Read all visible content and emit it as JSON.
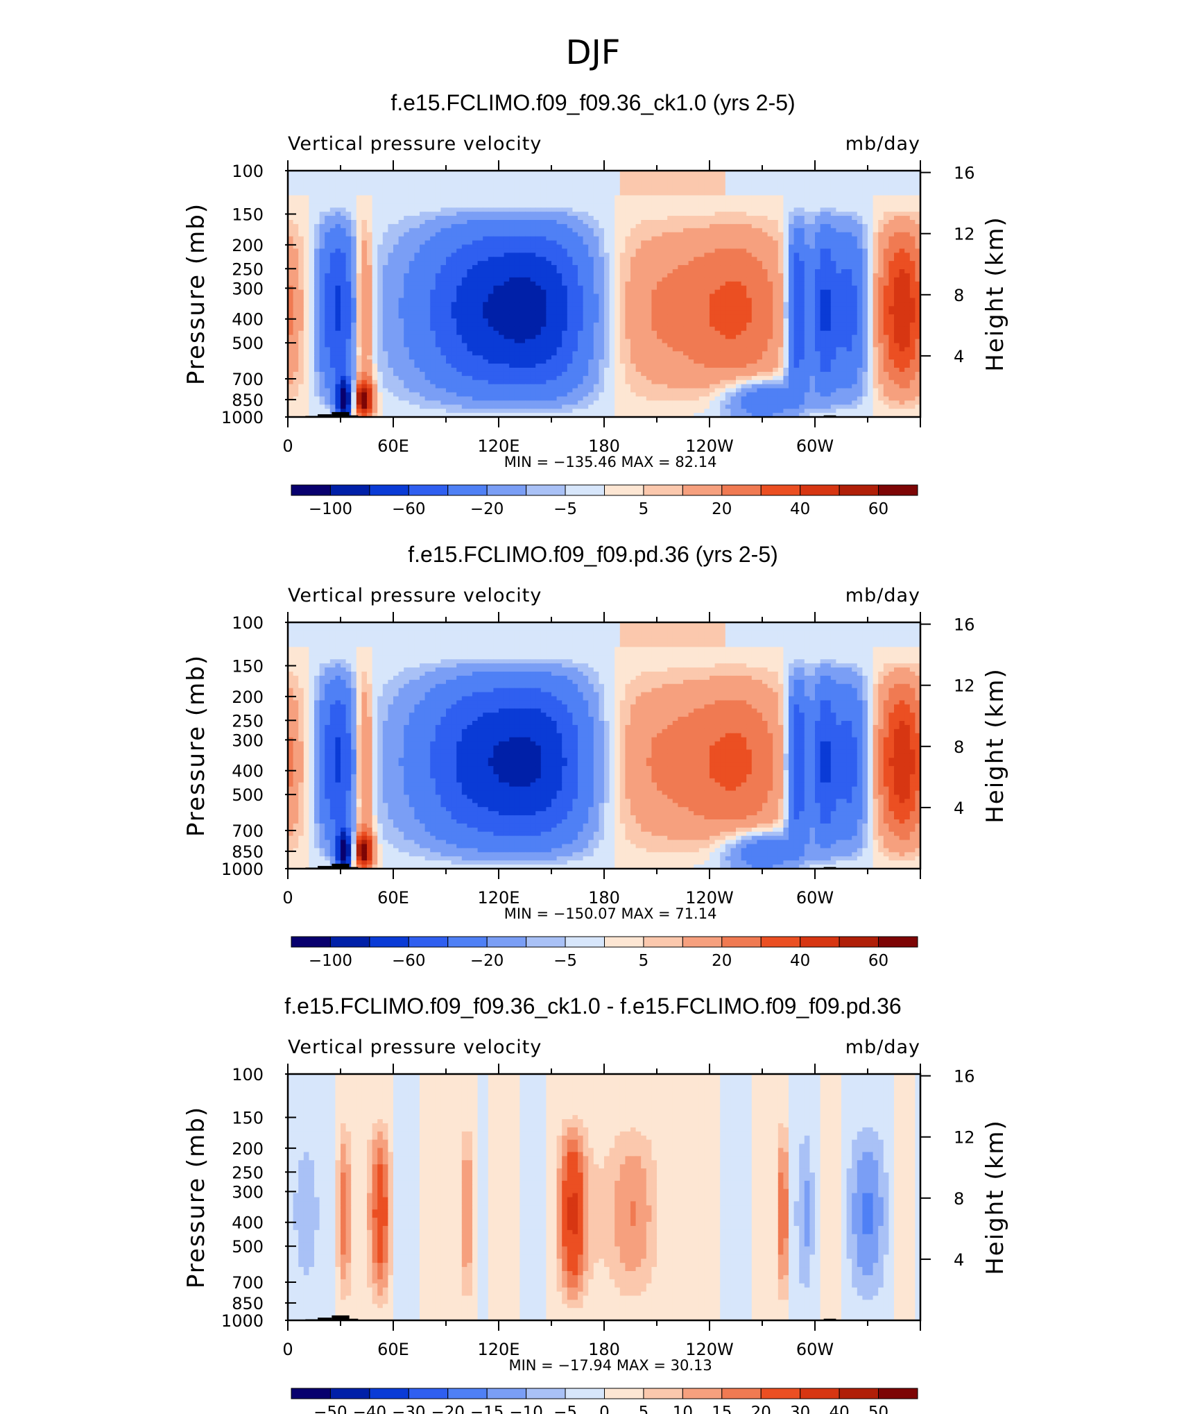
{
  "page": {
    "title": "DJF"
  },
  "colors": {
    "diverging_palette": [
      "#08006e",
      "#0020a8",
      "#0a3bd6",
      "#2f5ff0",
      "#4f80f5",
      "#7a9ef5",
      "#a9c1f6",
      "#d7e6fb",
      "#fde6d3",
      "#fbc8ad",
      "#f6a07e",
      "#f07a52",
      "#eb4f22",
      "#d73612",
      "#b01f08",
      "#7d0505"
    ],
    "topography": "#000000",
    "axis": "#000000"
  },
  "chart_data": [
    {
      "type": "heatmap",
      "name": "f.e15.FCLIMO.f09_f09.36_ck1.0 (yrs 2-5)",
      "title": "f.e15.FCLIMO.f09_f09.36_ck1.0 (yrs 2-5)",
      "variable_label": "Vertical pressure velocity",
      "units_label": "mb/day",
      "ylabel": "Pressure (mb)",
      "ylabel_right": "Height (km)",
      "y_ticks": [
        "100",
        "150",
        "200",
        "250",
        "300",
        "400",
        "500",
        "700",
        "850",
        "1000"
      ],
      "y_ticks_right": [
        "16",
        "12",
        "8",
        "4"
      ],
      "x_ticks": [
        "0",
        "60E",
        "120E",
        "180",
        "120W",
        "60W"
      ],
      "xlim": [
        0,
        360
      ],
      "ylim": [
        1000,
        100
      ],
      "y_scale": "log",
      "stats_label": "MIN = −135.46   MAX =   82.14",
      "min": -135.46,
      "max": 82.14,
      "colorbar_levels": [
        "−100",
        "−60",
        "−20",
        "−5",
        "5",
        "20",
        "40",
        "60"
      ],
      "grid": false
    },
    {
      "type": "heatmap",
      "name": "f.e15.FCLIMO.f09_f09.pd.36 (yrs 2-5)",
      "title": "f.e15.FCLIMO.f09_f09.pd.36 (yrs 2-5)",
      "variable_label": "Vertical pressure velocity",
      "units_label": "mb/day",
      "ylabel": "Pressure (mb)",
      "ylabel_right": "Height (km)",
      "y_ticks": [
        "100",
        "150",
        "200",
        "250",
        "300",
        "400",
        "500",
        "700",
        "850",
        "1000"
      ],
      "y_ticks_right": [
        "16",
        "12",
        "8",
        "4"
      ],
      "x_ticks": [
        "0",
        "60E",
        "120E",
        "180",
        "120W",
        "60W"
      ],
      "xlim": [
        0,
        360
      ],
      "ylim": [
        1000,
        100
      ],
      "y_scale": "log",
      "stats_label": "MIN = −150.07   MAX =   71.14",
      "min": -150.07,
      "max": 71.14,
      "colorbar_levels": [
        "−100",
        "−60",
        "−20",
        "−5",
        "5",
        "20",
        "40",
        "60"
      ],
      "grid": false
    },
    {
      "type": "heatmap",
      "name": "f.e15.FCLIMO.f09_f09.36_ck1.0 - f.e15.FCLIMO.f09_f09.pd.36",
      "title": "f.e15.FCLIMO.f09_f09.36_ck1.0 - f.e15.FCLIMO.f09_f09.pd.36",
      "variable_label": "Vertical pressure velocity",
      "units_label": "mb/day",
      "ylabel": "Pressure (mb)",
      "ylabel_right": "Height (km)",
      "y_ticks": [
        "100",
        "150",
        "200",
        "250",
        "300",
        "400",
        "500",
        "700",
        "850",
        "1000"
      ],
      "y_ticks_right": [
        "16",
        "12",
        "8",
        "4"
      ],
      "x_ticks": [
        "0",
        "60E",
        "120E",
        "180",
        "120W",
        "60W"
      ],
      "xlim": [
        0,
        360
      ],
      "ylim": [
        1000,
        100
      ],
      "y_scale": "log",
      "stats_label": "MIN =  −17.94   MAX =   30.13",
      "min": -17.94,
      "max": 30.13,
      "colorbar_levels": [
        "−50",
        "−40",
        "−30",
        "−20",
        "−15",
        "−10",
        "−5",
        "0",
        "5",
        "10",
        "15",
        "20",
        "30",
        "40",
        "50"
      ],
      "grid": false
    }
  ]
}
